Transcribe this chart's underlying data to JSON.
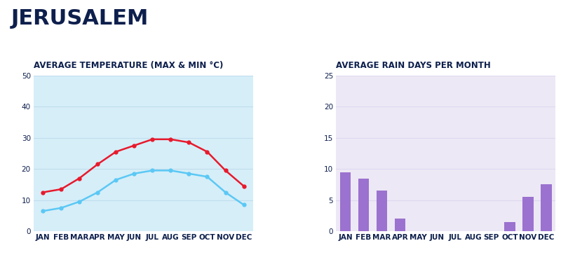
{
  "title": "JERUSALEM",
  "title_color": "#0d1f4c",
  "bg_color": "#ffffff",
  "temp_title": "AVERAGE TEMPERATURE (MAX & MIN °C)",
  "months": [
    "JAN",
    "FEB",
    "MAR",
    "APR",
    "MAY",
    "JUN",
    "JUL",
    "AUG",
    "SEP",
    "OCT",
    "NOV",
    "DEC"
  ],
  "temp_max": [
    12.5,
    13.5,
    17.0,
    21.5,
    25.5,
    27.5,
    29.5,
    29.5,
    28.5,
    25.5,
    19.5,
    14.5
  ],
  "temp_min": [
    6.5,
    7.5,
    9.5,
    12.5,
    16.5,
    18.5,
    19.5,
    19.5,
    18.5,
    17.5,
    12.5,
    8.5
  ],
  "temp_max_color": "#e8192c",
  "temp_min_color": "#5bc8f5",
  "temp_bg_color": "#d6eef8",
  "temp_grid_color": "#c0dced",
  "temp_ylim": [
    0,
    50
  ],
  "temp_yticks": [
    0,
    10,
    20,
    30,
    40,
    50
  ],
  "rain_title": "AVERAGE RAIN DAYS PER MONTH",
  "rain_values": [
    9.5,
    8.5,
    6.5,
    2.0,
    0.0,
    0.0,
    0.0,
    0.0,
    0.0,
    1.5,
    5.5,
    7.5
  ],
  "rain_bar_color": "#9b72cf",
  "rain_bg_color": "#ede8f5",
  "rain_grid_color": "#ddd8f0",
  "rain_ylim": [
    0,
    25
  ],
  "rain_yticks": [
    0,
    5,
    10,
    15,
    20,
    25
  ],
  "tick_label_color": "#0d1f4c",
  "label_fontsize": 7.5,
  "title_fontsize": 22,
  "subtitle_fontsize": 8.5
}
